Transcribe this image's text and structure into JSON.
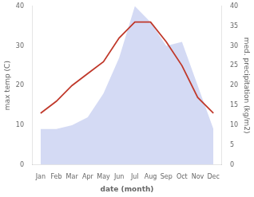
{
  "chart_data": {
    "type": "line",
    "xlabel": "date (month)",
    "ylabel": "max temp (C)",
    "y2label": "med. precipitation (kg/m2)",
    "categories": [
      "Jan",
      "Feb",
      "Mar",
      "Apr",
      "May",
      "Jun",
      "Jul",
      "Aug",
      "Sep",
      "Oct",
      "Nov",
      "Dec"
    ],
    "series": [
      {
        "type": "area",
        "color": "#c5cdf0",
        "axis": "y2",
        "values": [
          9,
          9,
          10,
          12,
          18,
          27,
          40,
          36,
          30,
          31,
          20,
          9
        ]
      },
      {
        "type": "line",
        "color": "#c0392b",
        "values": [
          13,
          16,
          20,
          23,
          26,
          32,
          36,
          36,
          31,
          25,
          17,
          13
        ]
      }
    ],
    "ylim": [
      0,
      40
    ],
    "yticks": [
      0,
      10,
      20,
      30,
      40
    ],
    "y2lim": [
      0,
      40
    ],
    "y2ticks": [
      0,
      5,
      10,
      15,
      20,
      25,
      30,
      35,
      40
    ],
    "grid": false
  }
}
